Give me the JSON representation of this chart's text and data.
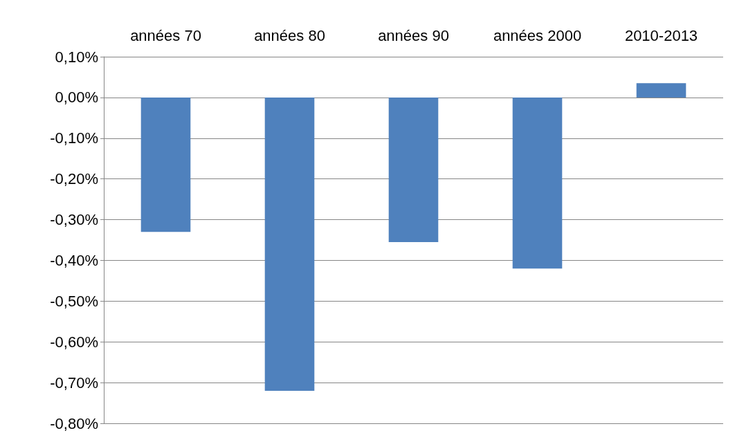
{
  "chart_data": {
    "type": "bar",
    "categories": [
      "années 70",
      "années 80",
      "années 90",
      "années 2000",
      "2010-2013"
    ],
    "values": [
      -0.33,
      -0.72,
      -0.355,
      -0.42,
      0.035
    ],
    "color": "#4f81bd",
    "ylim": [
      -0.8,
      0.1
    ],
    "yticks": [
      {
        "value": -0.8,
        "label": "-0,80%"
      },
      {
        "value": -0.7,
        "label": "-0,70%"
      },
      {
        "value": -0.6,
        "label": "-0,60%"
      },
      {
        "value": -0.5,
        "label": "-0,50%"
      },
      {
        "value": -0.4,
        "label": "-0,40%"
      },
      {
        "value": -0.3,
        "label": "-0,30%"
      },
      {
        "value": -0.2,
        "label": "-0,20%"
      },
      {
        "value": -0.1,
        "label": "-0,10%"
      },
      {
        "value": 0,
        "label": "0,00%"
      },
      {
        "value": 0.1,
        "label": "0,10%"
      }
    ],
    "grid": "y"
  }
}
